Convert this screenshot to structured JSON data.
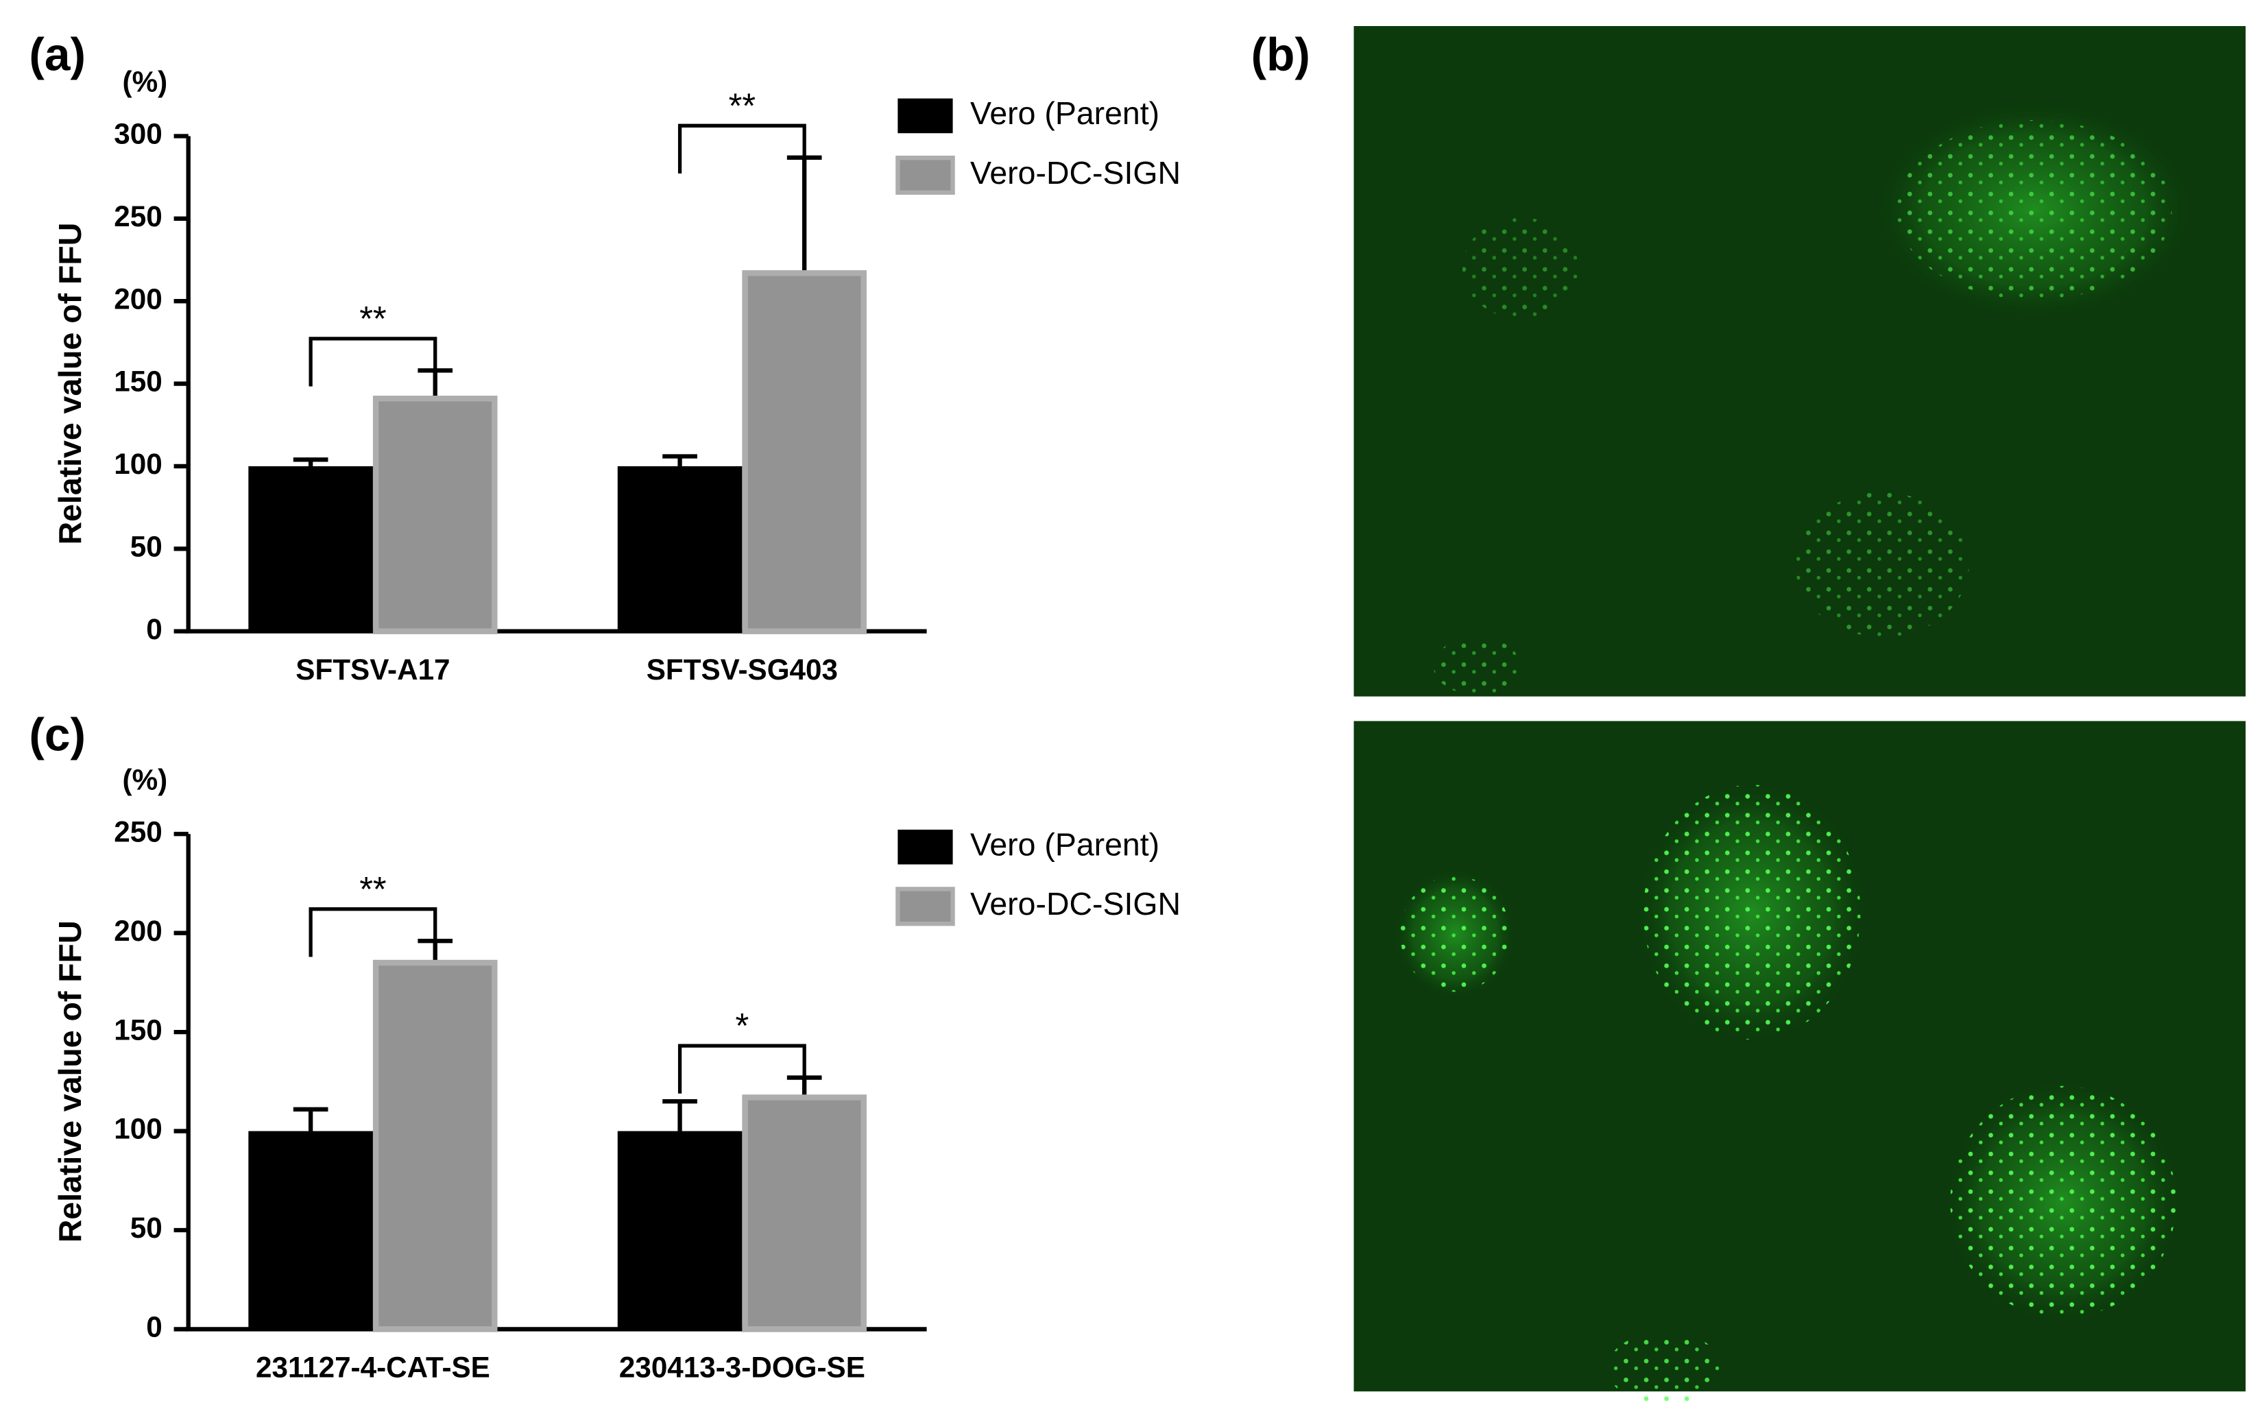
{
  "panel_labels": [
    "(a)",
    "(b)",
    "(c)"
  ],
  "chart_data": [
    {
      "type": "bar",
      "ylabel": "Relative value of FFU",
      "unit_label": "(%)",
      "categories": [
        "SFTSV-A17",
        "SFTSV-SG403"
      ],
      "series": [
        {
          "name": "Vero (Parent)",
          "color": "#000000",
          "values": [
            100,
            100
          ],
          "errors": [
            4,
            6
          ]
        },
        {
          "name": "Vero-DC-SIGN",
          "color": "#939393",
          "values": [
            141,
            217
          ],
          "errors": [
            17,
            70
          ]
        }
      ],
      "significance": [
        "**",
        "**"
      ],
      "ylim": [
        0,
        300
      ],
      "yticks": [
        0,
        50,
        100,
        150,
        200,
        250,
        300
      ]
    },
    {
      "type": "bar",
      "ylabel": "Relative value of FFU",
      "unit_label": "(%)",
      "categories": [
        "231127-4-CAT-SE",
        "230413-3-DOG-SE"
      ],
      "series": [
        {
          "name": "Vero (Parent)",
          "color": "#000000",
          "values": [
            100,
            100
          ],
          "errors": [
            11,
            15
          ]
        },
        {
          "name": "Vero-DC-SIGN",
          "color": "#939393",
          "values": [
            185,
            117
          ],
          "errors": [
            11,
            10
          ]
        }
      ],
      "significance": [
        "**",
        "*"
      ],
      "ylim": [
        0,
        250
      ],
      "yticks": [
        0,
        50,
        100,
        150,
        200,
        250
      ]
    }
  ]
}
